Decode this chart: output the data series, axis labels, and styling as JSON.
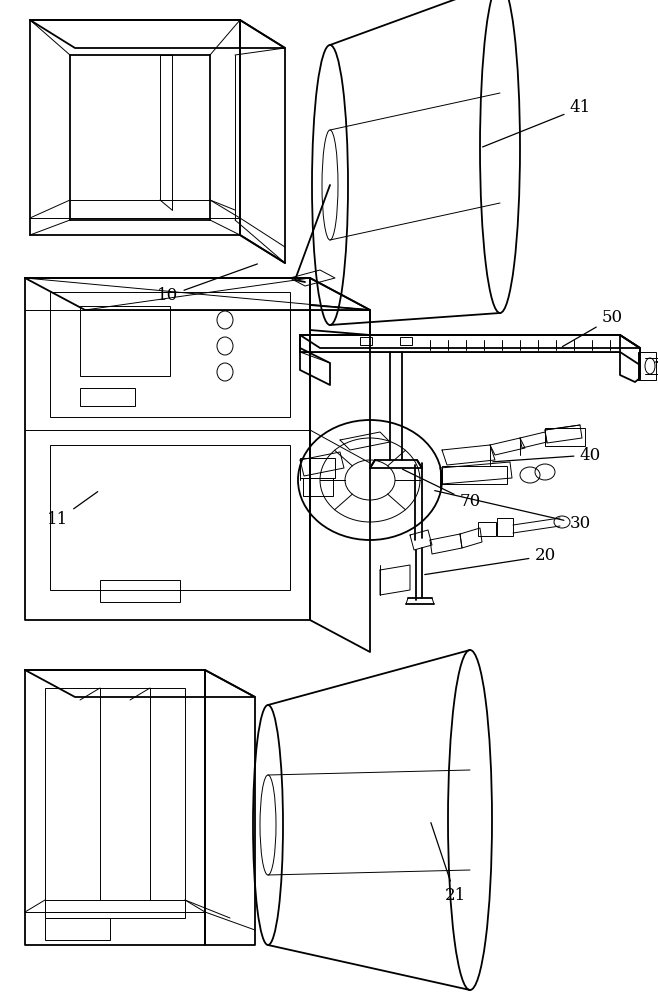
{
  "background_color": "#ffffff",
  "line_color": "#000000",
  "lw": 1.3,
  "tlw": 0.7,
  "figsize": [
    6.58,
    10.0
  ],
  "dpi": 100
}
